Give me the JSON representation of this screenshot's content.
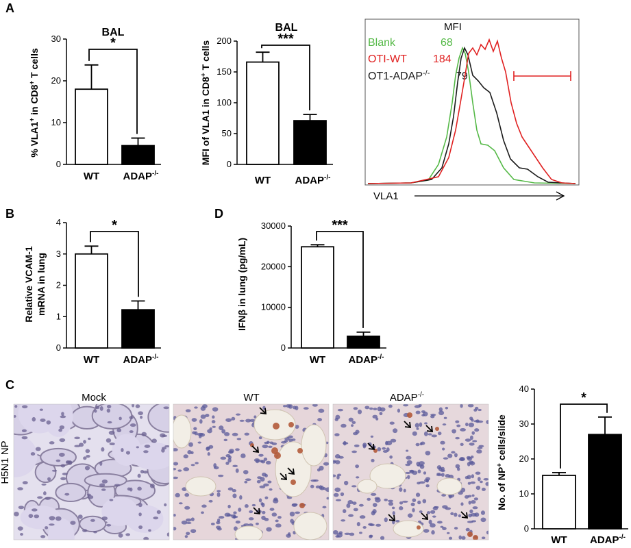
{
  "panels": {
    "a": "A",
    "b": "B",
    "c": "C",
    "d": "D"
  },
  "cat": {
    "wt": "WT",
    "adap": "ADAP",
    "adap_sup": "-/-"
  },
  "a1": {
    "title": "BAL",
    "sig": "*",
    "ylabel": "% VLA1",
    "ylabel_sup1": "+",
    "ylabel_mid": " in CD8",
    "ylabel_sup2": "+",
    "ylabel_end": " T cells",
    "ticks": [
      "0",
      "10",
      "20",
      "30"
    ]
  },
  "a2": {
    "title": "BAL",
    "sig": "***",
    "ylabel": "MFI of VLA1 in CD8",
    "ylabel_sup": "+",
    "ylabel_end": " T cells",
    "ticks": [
      "0",
      "50",
      "100",
      "150",
      "200"
    ]
  },
  "a3": {
    "mfi_title": "MFI",
    "legend": [
      {
        "name": "Blank",
        "value": "68",
        "color": "#55b947"
      },
      {
        "name": "OTI-WT",
        "value": "184",
        "color": "#e02020"
      },
      {
        "name": "OT1-ADAP",
        "sup": "-/-",
        "value": "79",
        "color": "#1a1a1a"
      }
    ],
    "xlabel": "VLA1"
  },
  "b": {
    "sig": "*",
    "ylabel_line1": "Relative VCAM-1",
    "ylabel_line2": "mRNA in lung",
    "ticks": [
      "0",
      "1",
      "2",
      "3",
      "4"
    ]
  },
  "d": {
    "sig": "***",
    "ylabel": "IFNβ in lung (pg/mL)",
    "ticks": [
      "0",
      "10000",
      "20000",
      "30000"
    ]
  },
  "c": {
    "row_label": "H5N1 NP",
    "images": [
      "Mock",
      "WT",
      "ADAP"
    ],
    "image3_sup": "-/-",
    "sig": "*",
    "ylabel": "No. of NP",
    "ylabel_sup": "+",
    "ylabel_end": " cells/slide",
    "ticks": [
      "0",
      "10",
      "20",
      "30",
      "40"
    ]
  },
  "colors": {
    "wt_bar": "#ffffff",
    "adap_bar": "#000000",
    "blank_curve": "#55b947",
    "wt_curve": "#e02020",
    "adap_curve": "#1a1a1a",
    "tissue_bg": "#e8e2ea",
    "nucleus": "#5a5a9a",
    "np_stain": "#b35a3a"
  },
  "chart_data": [
    {
      "type": "bar",
      "panel": "A-left",
      "title": "BAL",
      "categories": [
        "WT",
        "ADAP-/-"
      ],
      "values": [
        18,
        4.5
      ],
      "errors": [
        5.8,
        1.8
      ],
      "ylabel": "% VLA1+ in CD8+ T cells",
      "ylim": [
        0,
        30
      ],
      "significance": "*"
    },
    {
      "type": "bar",
      "panel": "A-middle",
      "title": "BAL",
      "categories": [
        "WT",
        "ADAP-/-"
      ],
      "values": [
        166,
        71
      ],
      "errors": [
        16,
        10
      ],
      "ylabel": "MFI of VLA1 in CD8+ T cells",
      "ylim": [
        0,
        200
      ],
      "significance": "***"
    },
    {
      "type": "line",
      "panel": "A-right",
      "xlabel": "VLA1",
      "series": [
        {
          "name": "Blank",
          "mfi": 68
        },
        {
          "name": "OTI-WT",
          "mfi": 184
        },
        {
          "name": "OT1-ADAP-/-",
          "mfi": 79
        }
      ]
    },
    {
      "type": "bar",
      "panel": "B",
      "categories": [
        "WT",
        "ADAP-/-"
      ],
      "values": [
        3.0,
        1.22
      ],
      "errors": [
        0.25,
        0.28
      ],
      "ylabel": "Relative VCAM-1 mRNA in lung",
      "ylim": [
        0,
        4
      ],
      "significance": "*"
    },
    {
      "type": "bar",
      "panel": "D",
      "categories": [
        "WT",
        "ADAP-/-"
      ],
      "values": [
        24900,
        2900
      ],
      "errors": [
        500,
        1000
      ],
      "ylabel": "IFNβ in lung (pg/mL)",
      "ylim": [
        0,
        30000
      ],
      "significance": "***"
    },
    {
      "type": "bar",
      "panel": "C",
      "categories": [
        "WT",
        "ADAP-/-"
      ],
      "values": [
        15.3,
        27
      ],
      "errors": [
        0.8,
        5
      ],
      "ylabel": "No. of NP+ cells/slide",
      "ylim": [
        0,
        40
      ],
      "significance": "*"
    }
  ]
}
